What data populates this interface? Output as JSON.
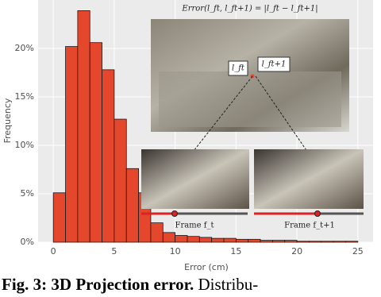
{
  "chart_data": {
    "type": "histogram",
    "x_label": "Error (cm)",
    "y_label": "Frequency",
    "bins": [
      0,
      1,
      2,
      3,
      4,
      5,
      6,
      7,
      8,
      9,
      10,
      11,
      12,
      13,
      14,
      15,
      16,
      17,
      18,
      19,
      20,
      21,
      22,
      23,
      24,
      25
    ],
    "values": [
      5.1,
      20.2,
      23.9,
      20.6,
      17.8,
      12.7,
      7.6,
      5.1,
      2.0,
      1.0,
      0.7,
      0.6,
      0.5,
      0.4,
      0.4,
      0.3,
      0.3,
      0.2,
      0.2,
      0.2,
      0.1,
      0.1,
      0.1,
      0.1,
      0.1
    ],
    "color": "#e5472d",
    "xlim": [
      -1.25,
      26.25
    ],
    "ylim": [
      0,
      25
    ],
    "xticks": [
      0,
      5,
      10,
      15,
      20,
      25
    ],
    "yticks": [
      {
        "value": 0,
        "label": "0%"
      },
      {
        "value": 5,
        "label": "5%"
      },
      {
        "value": 10,
        "label": "10%"
      },
      {
        "value": 15,
        "label": "15%"
      },
      {
        "value": 20,
        "label": "20%"
      }
    ],
    "grid": true,
    "annotations": {
      "formula": "Error(l_ft, l_ft+1) = |l_ft − l_ft+1|",
      "point_a": "l_ft",
      "point_b": "l_ft+1",
      "frame_a": "Frame f_t",
      "frame_b": "Frame f_t+1"
    }
  },
  "caption": {
    "label": "Fig. 3: 3D Projection error.",
    "text": " Distribu-"
  }
}
